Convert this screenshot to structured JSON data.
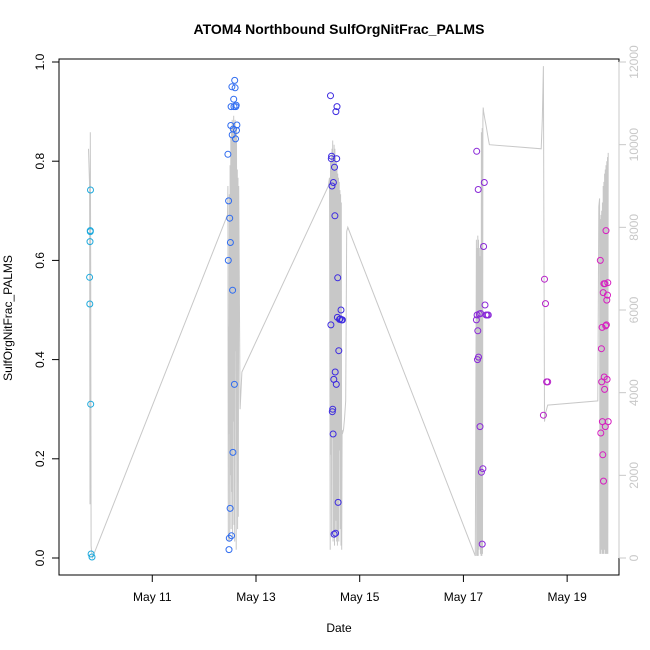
{
  "chart_data": {
    "type": "scatter",
    "title": "ATOM4 Northbound SulfOrgNitFrac_PALMS",
    "xlabel": "Date",
    "ylabel": "SulfOrgNitFrac_PALMS",
    "xlim": [
      "2018-05-09 04:50",
      "2018-05-20 00:00"
    ],
    "ylim": [
      0,
      1
    ],
    "y2lim": [
      0,
      12000
    ],
    "x_ticks": [
      "2018-05-11",
      "2018-05-13",
      "2018-05-15",
      "2018-05-17",
      "2018-05-19"
    ],
    "x_tick_labels": [
      "May 11",
      "May 13",
      "May 15",
      "May 17",
      "May 19"
    ],
    "y_ticks": [
      0.0,
      0.2,
      0.4,
      0.6,
      0.8,
      1.0
    ],
    "y_tick_labels": [
      "0.0",
      "0.2",
      "0.4",
      "0.6",
      "0.8",
      "1.0"
    ],
    "y2_ticks": [
      0,
      2000,
      4000,
      6000,
      8000,
      10000,
      12000
    ],
    "y2_tick_labels": [
      "0",
      "2000",
      "4000",
      "6000",
      "8000",
      "10000",
      "12000"
    ],
    "grid": false,
    "colors": {
      "flight1": "#1eaadd",
      "flight2": "#2f6cf0",
      "flight3": "#3c2ae0",
      "flight4": "#8a28d8",
      "flight5": "#b722c8",
      "flight6": "#d61ec0",
      "altitude": "#c8c8c8"
    },
    "series": [
      {
        "color_key": "flight1",
        "x": [
          "2018-05-09 19:00",
          "2018-05-09 19:05",
          "2018-05-09 19:10",
          "2018-05-09 19:20",
          "2018-05-09 19:25",
          "2018-05-09 19:30",
          "2018-05-09 19:40",
          "2018-05-09 20:05",
          "2018-05-09 19:20"
        ],
        "y": [
          0.566,
          0.512,
          0.638,
          0.658,
          0.742,
          0.31,
          0.008,
          0.002,
          0.66
        ]
      },
      {
        "color_key": "flight2",
        "x": [
          "2018-05-12 11:00",
          "2018-05-12 11:10",
          "2018-05-12 11:20",
          "2018-05-12 11:30",
          "2018-05-12 11:40",
          "2018-05-12 11:50",
          "2018-05-12 12:00",
          "2018-05-12 12:10",
          "2018-05-12 12:20",
          "2018-05-12 12:30",
          "2018-05-12 12:40",
          "2018-05-12 12:50",
          "2018-05-12 13:00",
          "2018-05-12 13:10",
          "2018-05-12 13:20",
          "2018-05-12 13:30",
          "2018-05-12 13:40",
          "2018-05-12 13:50",
          "2018-05-12 14:00",
          "2018-05-12 14:10",
          "2018-05-12 14:20",
          "2018-05-12 14:30",
          "2018-05-12 14:40",
          "2018-05-12 14:50",
          "2018-05-12 15:00",
          "2018-05-12 15:10"
        ],
        "y": [
          0.814,
          0.6,
          0.72,
          0.017,
          0.04,
          0.685,
          0.1,
          0.636,
          0.872,
          0.91,
          0.045,
          0.95,
          0.853,
          0.54,
          0.213,
          0.865,
          0.925,
          0.91,
          0.35,
          0.963,
          0.948,
          0.845,
          0.91,
          0.913,
          0.862,
          0.873
        ]
      },
      {
        "color_key": "flight3",
        "x": [
          "2018-05-14 10:30",
          "2018-05-14 10:40",
          "2018-05-14 10:50",
          "2018-05-14 11:00",
          "2018-05-14 11:10",
          "2018-05-14 11:20",
          "2018-05-14 11:30",
          "2018-05-14 11:40",
          "2018-05-14 11:50",
          "2018-05-14 12:00",
          "2018-05-14 12:10",
          "2018-05-14 12:20",
          "2018-05-14 12:30",
          "2018-05-14 12:40",
          "2018-05-14 12:50",
          "2018-05-14 13:00",
          "2018-05-14 13:10",
          "2018-05-14 13:20",
          "2018-05-14 13:30",
          "2018-05-14 13:40",
          "2018-05-14 13:50",
          "2018-05-14 14:00",
          "2018-05-14 14:20",
          "2018-05-14 14:40",
          "2018-05-14 15:00",
          "2018-05-14 15:20",
          "2018-05-14 15:40",
          "2018-05-14 16:00"
        ],
        "y": [
          0.932,
          0.47,
          0.805,
          0.81,
          0.75,
          0.295,
          0.3,
          0.25,
          0.757,
          0.36,
          0.048,
          0.788,
          0.69,
          0.375,
          0.05,
          0.9,
          0.35,
          0.805,
          0.91,
          0.485,
          0.565,
          0.112,
          0.418,
          0.481,
          0.482,
          0.5,
          0.48,
          0.48
        ]
      },
      {
        "color_key": "flight4",
        "x": [
          "2018-05-17 06:00",
          "2018-05-17 06:10",
          "2018-05-17 06:20",
          "2018-05-17 06:30",
          "2018-05-17 06:40",
          "2018-05-17 06:50",
          "2018-05-17 07:00",
          "2018-05-17 07:20",
          "2018-05-17 07:40",
          "2018-05-17 08:00",
          "2018-05-17 08:20",
          "2018-05-17 08:40",
          "2018-05-17 09:00",
          "2018-05-17 09:20",
          "2018-05-17 09:40",
          "2018-05-17 10:00",
          "2018-05-17 10:30",
          "2018-05-17 11:00",
          "2018-05-17 11:30"
        ],
        "y": [
          0.48,
          0.82,
          0.49,
          0.4,
          0.458,
          0.743,
          0.405,
          0.492,
          0.265,
          0.493,
          0.173,
          0.028,
          0.18,
          0.628,
          0.757,
          0.51,
          0.49,
          0.49,
          0.49
        ]
      },
      {
        "color_key": "flight5",
        "x": [
          "2018-05-18 13:00",
          "2018-05-18 13:30",
          "2018-05-18 14:00",
          "2018-05-18 14:30",
          "2018-05-18 15:00"
        ],
        "y": [
          0.288,
          0.562,
          0.513,
          0.355,
          0.355
        ]
      },
      {
        "color_key": "flight6",
        "x": [
          "2018-05-19 15:20",
          "2018-05-19 15:35",
          "2018-05-19 15:50",
          "2018-05-19 16:00",
          "2018-05-19 16:10",
          "2018-05-19 16:20",
          "2018-05-19 16:30",
          "2018-05-19 16:40",
          "2018-05-19 16:50",
          "2018-05-19 17:00",
          "2018-05-19 17:10",
          "2018-05-19 17:20",
          "2018-05-19 17:30",
          "2018-05-19 17:40",
          "2018-05-19 17:50",
          "2018-05-19 18:00",
          "2018-05-19 18:10",
          "2018-05-19 18:20",
          "2018-05-19 18:30",
          "2018-05-19 18:40",
          "2018-05-19 18:50",
          "2018-05-19 19:00"
        ],
        "y": [
          0.6,
          0.252,
          0.422,
          0.355,
          0.465,
          0.275,
          0.208,
          0.535,
          0.155,
          0.553,
          0.365,
          0.34,
          0.553,
          0.265,
          0.468,
          0.66,
          0.47,
          0.52,
          0.36,
          0.53,
          0.555,
          0.275
        ]
      }
    ],
    "altitude_y2": {
      "x": [
        "2018-05-09 18:30",
        "2018-05-09 19:00",
        "2018-05-09 19:10",
        "2018-05-09 19:20",
        "2018-05-09 19:30",
        "2018-05-09 19:40",
        "2018-05-09 19:50",
        "2018-05-09 20:20",
        "2018-05-12 10:50",
        "2018-05-12 11:00",
        "2018-05-12 11:10",
        "2018-05-12 11:20",
        "2018-05-12 11:30",
        "2018-05-12 11:40",
        "2018-05-12 11:50",
        "2018-05-12 12:00",
        "2018-05-12 12:10",
        "2018-05-12 12:20",
        "2018-05-12 12:30",
        "2018-05-12 12:40",
        "2018-05-12 12:50",
        "2018-05-12 13:00",
        "2018-05-12 13:10",
        "2018-05-12 13:20",
        "2018-05-12 13:30",
        "2018-05-12 13:40",
        "2018-05-12 13:50",
        "2018-05-12 14:00",
        "2018-05-12 14:10",
        "2018-05-12 14:20",
        "2018-05-12 14:30",
        "2018-05-12 14:40",
        "2018-05-12 14:50",
        "2018-05-12 15:00",
        "2018-05-12 15:10",
        "2018-05-12 15:20",
        "2018-05-12 15:30",
        "2018-05-12 15:40",
        "2018-05-12 15:50",
        "2018-05-12 16:00",
        "2018-05-12 16:40",
        "2018-05-12 17:30",
        "2018-05-14 09:30",
        "2018-05-14 10:00",
        "2018-05-14 10:20",
        "2018-05-14 10:30",
        "2018-05-14 10:40",
        "2018-05-14 10:50",
        "2018-05-14 11:00",
        "2018-05-14 11:10",
        "2018-05-14 11:20",
        "2018-05-14 11:30",
        "2018-05-14 11:40",
        "2018-05-14 11:50",
        "2018-05-14 12:00",
        "2018-05-14 12:10",
        "2018-05-14 12:20",
        "2018-05-14 12:30",
        "2018-05-14 12:40",
        "2018-05-14 12:50",
        "2018-05-14 13:00",
        "2018-05-14 13:10",
        "2018-05-14 13:20",
        "2018-05-14 13:30",
        "2018-05-14 13:40",
        "2018-05-14 13:50",
        "2018-05-14 14:00",
        "2018-05-14 14:10",
        "2018-05-14 14:20",
        "2018-05-14 14:30",
        "2018-05-14 14:40",
        "2018-05-14 14:50",
        "2018-05-14 15:00",
        "2018-05-14 15:10",
        "2018-05-14 15:20",
        "2018-05-14 15:30",
        "2018-05-14 15:40",
        "2018-05-14 15:50",
        "2018-05-14 16:00",
        "2018-05-14 16:30",
        "2018-05-14 17:00",
        "2018-05-14 17:30",
        "2018-05-14 18:00",
        "2018-05-14 18:30",
        "2018-05-17 05:30",
        "2018-05-17 06:00",
        "2018-05-17 06:10",
        "2018-05-17 06:20",
        "2018-05-17 06:30",
        "2018-05-17 06:40",
        "2018-05-17 06:50",
        "2018-05-17 07:00",
        "2018-05-17 07:10",
        "2018-05-17 07:20",
        "2018-05-17 07:30",
        "2018-05-17 07:40",
        "2018-05-17 07:50",
        "2018-05-17 08:00",
        "2018-05-17 08:10",
        "2018-05-17 08:20",
        "2018-05-17 08:30",
        "2018-05-17 08:40",
        "2018-05-17 08:50",
        "2018-05-17 09:00",
        "2018-05-17 09:10",
        "2018-05-17 09:20",
        "2018-05-17 09:40",
        "2018-05-17 10:00",
        "2018-05-17 10:20",
        "2018-05-17 10:40",
        "2018-05-17 11:00",
        "2018-05-17 11:20",
        "2018-05-17 11:40",
        "2018-05-17 12:00",
        "2018-05-18 12:00",
        "2018-05-18 12:30",
        "2018-05-18 13:00",
        "2018-05-18 13:30",
        "2018-05-18 14:00",
        "2018-05-18 14:30",
        "2018-05-18 15:00",
        "2018-05-19 14:10",
        "2018-05-19 14:40",
        "2018-05-19 15:00",
        "2018-05-19 15:10",
        "2018-05-19 15:20",
        "2018-05-19 15:30",
        "2018-05-19 15:40",
        "2018-05-19 15:50",
        "2018-05-19 16:00",
        "2018-05-19 16:10",
        "2018-05-19 16:20",
        "2018-05-19 16:30",
        "2018-05-19 16:40",
        "2018-05-19 16:50",
        "2018-05-19 17:00",
        "2018-05-19 17:10",
        "2018-05-19 17:20",
        "2018-05-19 17:30",
        "2018-05-19 17:40",
        "2018-05-19 17:50",
        "2018-05-19 18:00",
        "2018-05-19 18:10",
        "2018-05-19 18:20",
        "2018-05-19 18:30",
        "2018-05-19 18:40",
        "2018-05-19 18:50",
        "2018-05-19 19:00"
      ],
      "y": [
        9900,
        9000,
        1300,
        10300,
        7000,
        300,
        200,
        10,
        8300,
        9000,
        400,
        5600,
        3000,
        8800,
        400,
        9500,
        2000,
        10200,
        700,
        10400,
        1600,
        10600,
        500,
        10500,
        3300,
        10700,
        800,
        10500,
        400,
        10600,
        5000,
        10300,
        200,
        10400,
        2500,
        9400,
        700,
        9200,
        1000,
        9000,
        3600,
        4500,
        9000,
        9200,
        200,
        9600,
        2500,
        9700,
        500,
        9900,
        3000,
        10100,
        400,
        9800,
        600,
        10000,
        300,
        9900,
        500,
        9700,
        900,
        9600,
        400,
        9500,
        300,
        9300,
        600,
        9200,
        400,
        9100,
        2600,
        8900,
        700,
        8800,
        300,
        8600,
        200,
        3100,
        3000,
        3100,
        3400,
        3800,
        7900,
        8000,
        50,
        7700,
        50,
        7500,
        50,
        7800,
        50,
        7700,
        200,
        7500,
        300,
        7300,
        100,
        7600,
        50,
        10300,
        50,
        10400,
        100,
        10600,
        10900,
        10800,
        10700,
        10600,
        10500,
        10400,
        10300,
        10200,
        10100,
        10000,
        9900,
        10600,
        11900,
        3300,
        3500,
        3600,
        3700,
        3800,
        8500,
        8700,
        100,
        8200,
        100,
        8300,
        200,
        8400,
        100,
        8600,
        100,
        9000,
        100,
        9100,
        200,
        9300,
        100,
        9400,
        100,
        9500,
        100,
        9600,
        100,
        9700,
        100,
        9800
      ]
    }
  }
}
